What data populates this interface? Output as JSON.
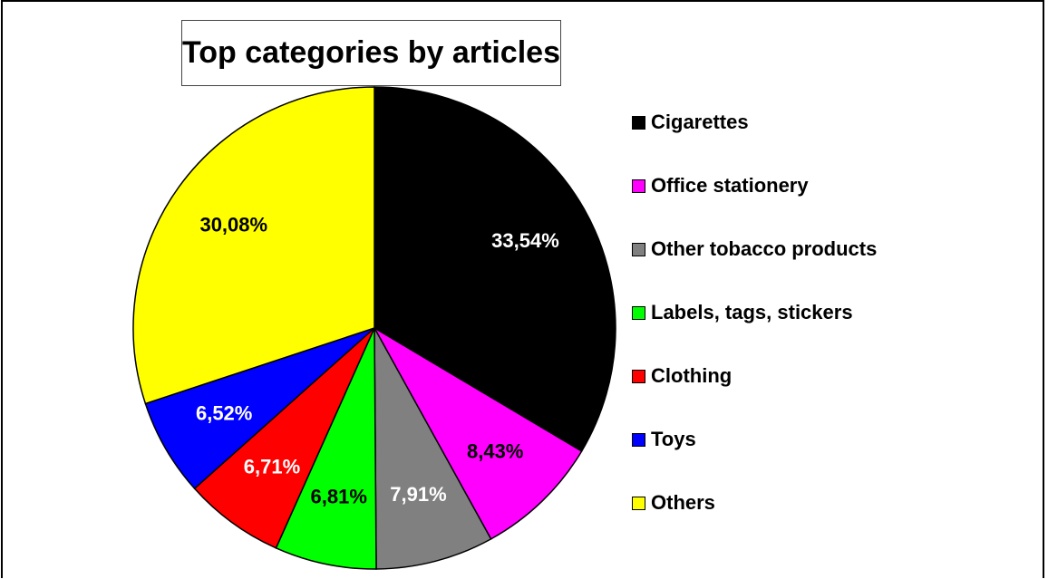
{
  "chart_data": {
    "type": "pie",
    "title": "Top categories by articles",
    "slices": [
      {
        "name": "Cigarettes",
        "value": 33.54,
        "label": "33,54%",
        "color": "#000000",
        "label_color": "#ffffff"
      },
      {
        "name": "Office stationery",
        "value": 8.43,
        "label": "8,43%",
        "color": "#ff00ff",
        "label_color": "#000000"
      },
      {
        "name": "Other tobacco products",
        "value": 7.91,
        "label": "7,91%",
        "color": "#808080",
        "label_color": "#ffffff"
      },
      {
        "name": "Labels, tags, stickers",
        "value": 6.81,
        "label": "6,81%",
        "color": "#00ff00",
        "label_color": "#000000"
      },
      {
        "name": "Clothing",
        "value": 6.71,
        "label": "6,71%",
        "color": "#ff0000",
        "label_color": "#ffffff"
      },
      {
        "name": "Toys",
        "value": 6.52,
        "label": "6,52%",
        "color": "#0000ff",
        "label_color": "#ffffff"
      },
      {
        "name": "Others",
        "value": 30.08,
        "label": "30,08%",
        "color": "#ffff00",
        "label_color": "#000000"
      }
    ],
    "legend_position": "right"
  }
}
